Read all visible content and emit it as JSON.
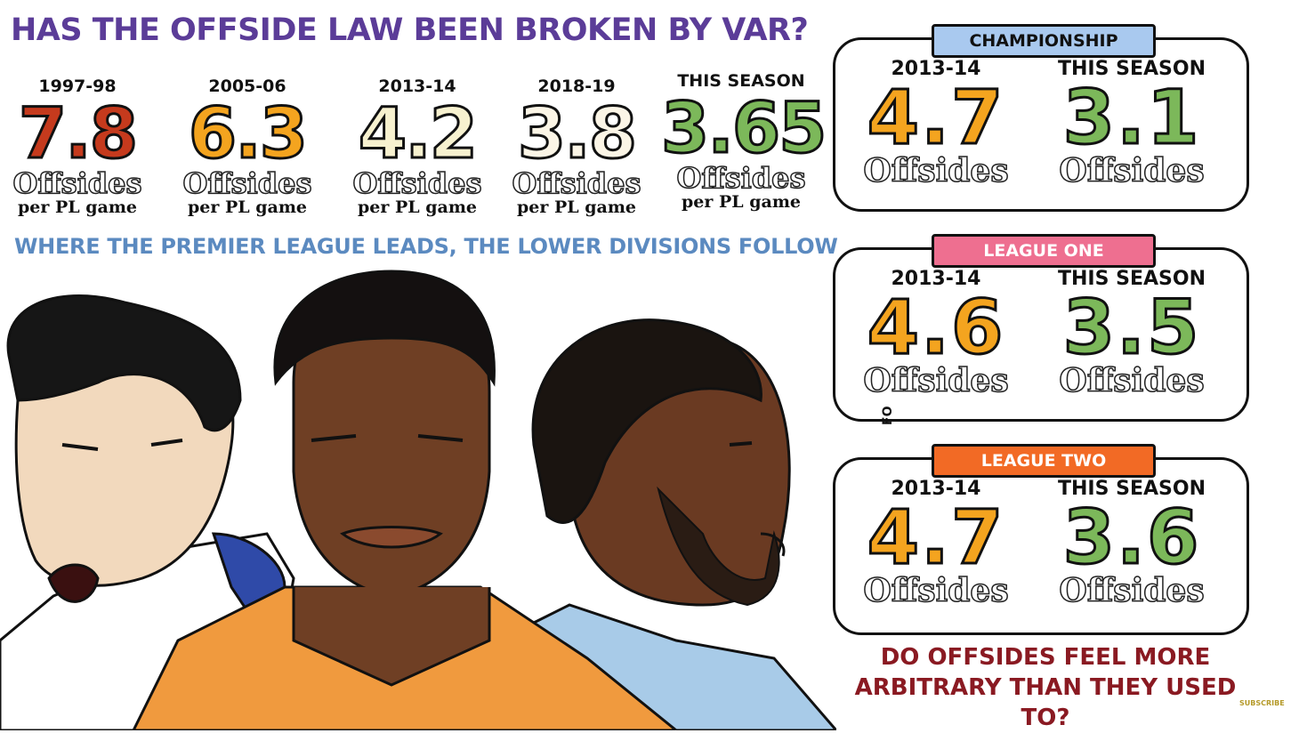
{
  "title": "HAS THE OFFSIDE LAW BEEN BROKEN BY VAR?",
  "subtitle": "WHERE THE PREMIER LEAGUE LEADS, THE LOWER DIVISIONS FOLLOW",
  "premier_league": [
    {
      "season": "1997-98",
      "value": "7.8",
      "unit": "Offsides",
      "per": "per PL game",
      "color": "#c53a1d"
    },
    {
      "season": "2005-06",
      "value": "6.3",
      "unit": "Offsides",
      "per": "per PL game",
      "color": "#f4a41f"
    },
    {
      "season": "2013-14",
      "value": "4.2",
      "unit": "Offsides",
      "per": "per PL game",
      "color": "#f7f1cf"
    },
    {
      "season": "2018-19",
      "value": "3.8",
      "unit": "Offsides",
      "per": "per PL game",
      "color": "#fbf5e6"
    },
    {
      "season": "THIS SEASON",
      "value": "3.65",
      "unit": "Offsides",
      "per": "per PL game",
      "color": "#7cb85a"
    }
  ],
  "divisions": [
    {
      "name": "CHAMPIONSHIP",
      "tag_color": "#a9c9ef",
      "tag_text_color": "#111111",
      "then": {
        "season": "2013-14",
        "value": "4.7",
        "unit": "Offsides",
        "color": "#f4a41f"
      },
      "now": {
        "season": "THIS SEASON",
        "value": "3.1",
        "unit": "Offsides",
        "color": "#7cb85a"
      }
    },
    {
      "name": "LEAGUE ONE",
      "tag_color": "#ee6f90",
      "tag_text_color": "#ffffff",
      "then": {
        "season": "2013-14",
        "value": "4.6",
        "unit": "Offsides",
        "color": "#f4a41f"
      },
      "now": {
        "season": "THIS SEASON",
        "value": "3.5",
        "unit": "Offsides",
        "color": "#7cb85a"
      }
    },
    {
      "name": "LEAGUE TWO",
      "tag_color": "#f26a25",
      "tag_text_color": "#ffffff",
      "then": {
        "season": "2013-14",
        "value": "4.7",
        "unit": "Offsides",
        "color": "#f4a41f"
      },
      "now": {
        "season": "THIS SEASON",
        "value": "3.6",
        "unit": "Offsides",
        "color": "#7cb85a"
      }
    }
  ],
  "question_line1": "DO OFFSIDES FEEL MORE",
  "question_line2": "ARBITRARY THAN THEY USED TO?",
  "side_text": "FO",
  "subscribe": "SUBSCRIBE",
  "illustration": {
    "description_icons": [
      "player-illustration-left",
      "player-illustration-center",
      "player-illustration-right"
    ],
    "shirt_colors": {
      "left": "#ffffff",
      "center": "#f09a3e",
      "right": "#a8cbe8"
    }
  }
}
